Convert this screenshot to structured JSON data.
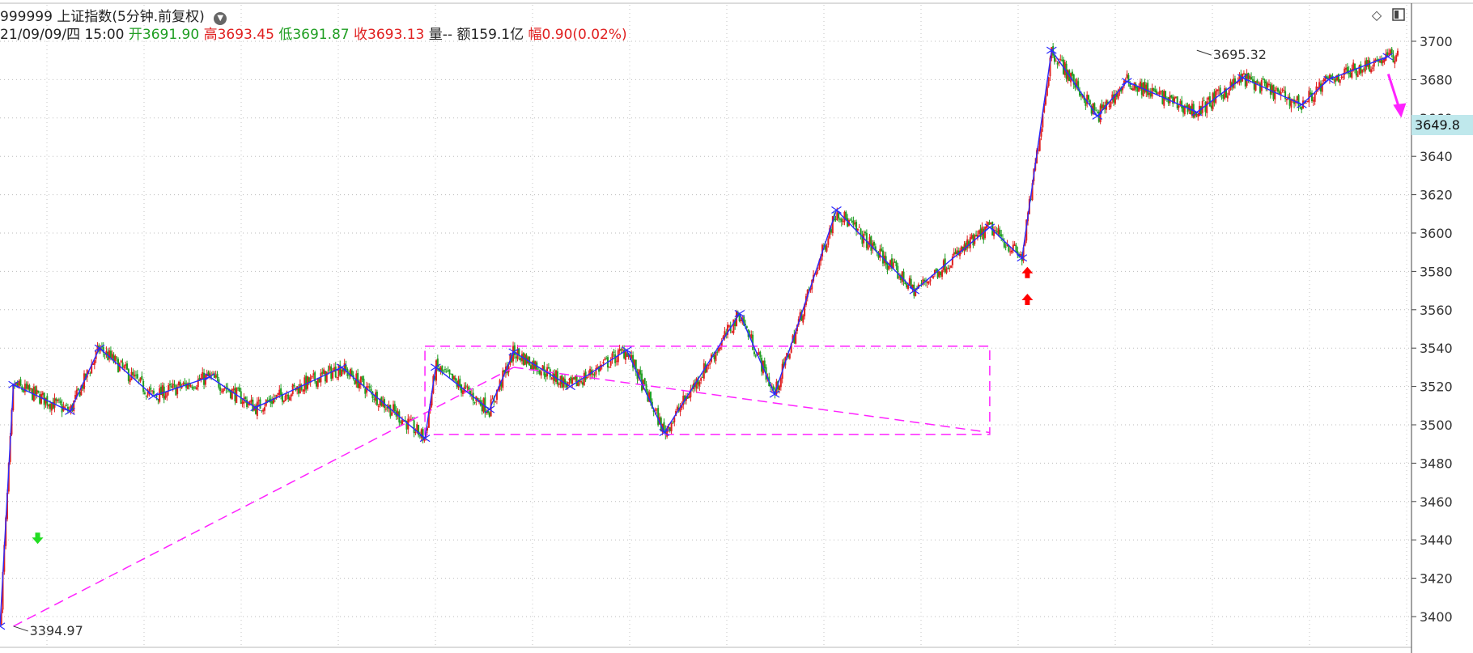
{
  "header": {
    "code": "999999",
    "name": "上证指数",
    "period": "(5分钟.前复权)",
    "datetime": "21/09/09/四 15:00",
    "open_label": "开",
    "open_value": "3691.90",
    "high_label": "高",
    "high_value": "3693.45",
    "low_label": "低",
    "low_value": "3691.87",
    "close_label": "收",
    "close_value": "3693.13",
    "volume_label": "量",
    "volume_value": "--",
    "amount_label": "额",
    "amount_value": "159.1亿",
    "change_label": "幅",
    "change_value": "0.90(0.02%)"
  },
  "toolbar": {
    "diamond_icon": "diamond-outline-icon",
    "panel_icon": "panel-toggle-icon"
  },
  "current_price_tag": "3649.8",
  "colors": {
    "up": "#e02020",
    "down": "#1f9e22",
    "zigzag": "#2a2aff",
    "channel": "#ff22ff",
    "signal_buy": "#ff0000",
    "signal_green": "#22dd22",
    "price_tag_bg": "#bfe8ec"
  },
  "chart_data": {
    "type": "line",
    "title": "999999 上证指数(5分钟.前复权)",
    "xlabel": "",
    "ylabel": "",
    "ylim": [
      3390,
      3705
    ],
    "x": [
      0,
      5,
      26,
      37,
      57,
      78,
      95,
      127,
      158,
      162,
      182,
      191,
      212,
      233,
      247,
      275,
      288,
      311,
      340,
      368,
      380,
      391,
      408,
      419,
      445,
      462,
      484,
      494,
      516
    ],
    "yticks": [
      3400,
      3420,
      3440,
      3460,
      3480,
      3500,
      3520,
      3540,
      3560,
      3580,
      3600,
      3620,
      3640,
      3660,
      3680,
      3700
    ],
    "grid": true,
    "series": [
      {
        "kind": "zigzag",
        "values": [
          3394.97,
          3521,
          3507,
          3540,
          3515,
          3525,
          3509,
          3530,
          3493,
          3530,
          3508,
          3538,
          3520,
          3539,
          3496,
          3558,
          3516,
          3612,
          3570,
          3603,
          3587,
          3695.32,
          3661,
          3679,
          3663,
          3681,
          3667,
          3680,
          3692
        ]
      }
    ],
    "channel": {
      "box": {
        "x": [
          158,
          368
        ],
        "y": [
          3495,
          3541
        ]
      },
      "lines": [
        {
          "x": [
            5,
            191
          ],
          "y": [
            3394.97,
            3530
          ]
        },
        {
          "x": [
            191,
            368
          ],
          "y": [
            3530,
            3496
          ]
        }
      ]
    },
    "annotations": [
      {
        "text": "3394.97",
        "x": 5,
        "y": 3394.97
      },
      {
        "text": "3695.32",
        "x": 445,
        "y": 3695.32
      }
    ],
    "signals": [
      {
        "type": "green-down-arrow",
        "x": 14,
        "y": 3440
      },
      {
        "type": "red-up-arrow",
        "x": 382,
        "y": 3579
      },
      {
        "type": "red-up-arrow",
        "x": 382,
        "y": 3565
      },
      {
        "type": "magenta-down-arrow",
        "x": 518,
        "y": 3677
      }
    ]
  }
}
